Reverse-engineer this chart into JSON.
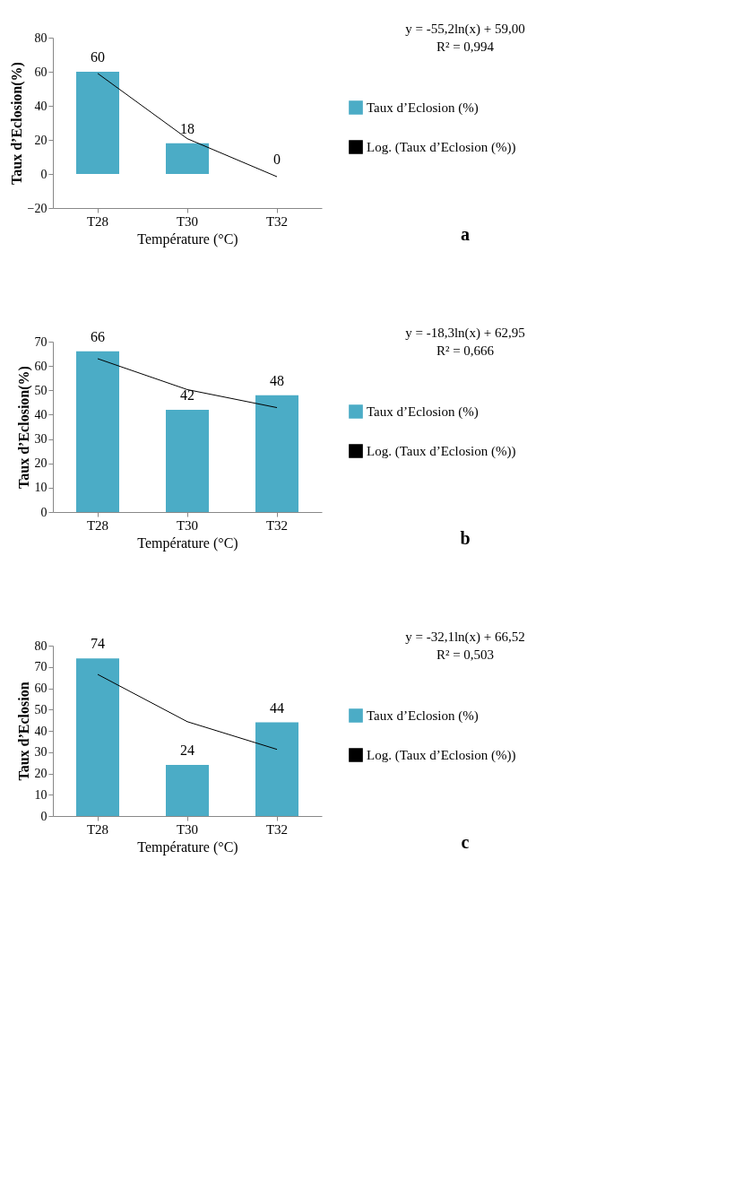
{
  "chart_data": [
    {
      "type": "bar",
      "categories": [
        "T28",
        "T30",
        "T32"
      ],
      "xlabel": "Température (°C)",
      "ylabel": "Taux d’Eclosion(%)",
      "ylim": [
        -20,
        80
      ],
      "yticks": [
        -20,
        0,
        20,
        40,
        60,
        80
      ],
      "grid": false,
      "legend": "right",
      "series": [
        {
          "name": "Taux d’Eclosion (%)",
          "color": "#4bacc6",
          "values": [
            60,
            18,
            0
          ],
          "value_labels": [
            "60",
            "18",
            "0"
          ]
        },
        {
          "name": "Log. (Taux d’Eclosion (%))",
          "type": "line",
          "color": "#000000",
          "values": [
            59.0,
            20.7,
            -1.6
          ]
        }
      ],
      "annotations": [
        "y = -55,2ln(x) + 59,00",
        "R² = 0,994",
        "a"
      ]
    },
    {
      "type": "bar",
      "categories": [
        "T28",
        "T30",
        "T32"
      ],
      "xlabel": "Température (°C)",
      "ylabel": "Taux d’Eclosion(%)",
      "ylim": [
        0,
        70
      ],
      "yticks": [
        0,
        10,
        20,
        30,
        40,
        50,
        60,
        70
      ],
      "grid": false,
      "legend": "right",
      "series": [
        {
          "name": "Taux d’Eclosion (%)",
          "color": "#4bacc6",
          "values": [
            66,
            42,
            48
          ],
          "value_labels": [
            "66",
            "42",
            "48"
          ]
        },
        {
          "name": "Log. (Taux d’Eclosion (%))",
          "type": "line",
          "color": "#000000",
          "values": [
            63.0,
            50.3,
            42.9
          ]
        }
      ],
      "annotations": [
        "y = -18,3ln(x) + 62,95",
        "R² = 0,666",
        "b"
      ]
    },
    {
      "type": "bar",
      "categories": [
        "T28",
        "T30",
        "T32"
      ],
      "xlabel": "Température (°C)",
      "ylabel": "Taux d’Eclosion",
      "ylim": [
        0,
        80
      ],
      "yticks": [
        0,
        10,
        20,
        30,
        40,
        50,
        60,
        70,
        80
      ],
      "grid": false,
      "legend": "right",
      "series": [
        {
          "name": "Taux d’Eclosion (%)",
          "color": "#4bacc6",
          "values": [
            74,
            24,
            44
          ],
          "value_labels": [
            "74",
            "24",
            "44"
          ]
        },
        {
          "name": "Log. (Taux d’Eclosion (%))",
          "type": "line",
          "color": "#000000",
          "values": [
            66.5,
            44.3,
            31.3
          ]
        }
      ],
      "annotations": [
        "y = -32,1ln(x) + 66,52",
        "R² = 0,503",
        "c"
      ]
    }
  ]
}
